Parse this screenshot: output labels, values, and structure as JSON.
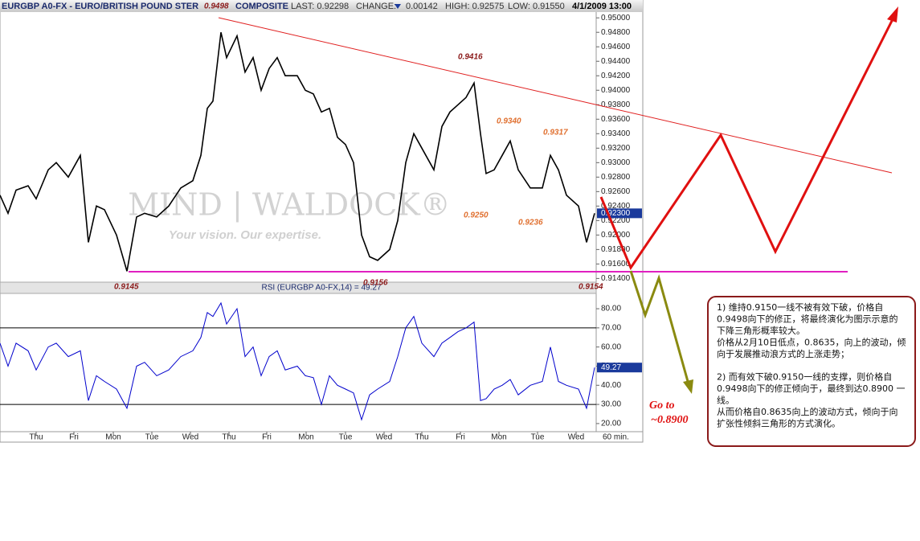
{
  "header": {
    "symbol": "EURGBP A0-FX - EURO/BRITISH POUND STER",
    "source": "COMPOSITE",
    "last": "LAST: 0.92298",
    "change_label": "CHANGE:",
    "change": "0.00142",
    "high": "HIGH: 0.92575",
    "low": "LOW: 0.91550",
    "datetime": "4/1/2009 13:00"
  },
  "chart_data": [
    {
      "type": "line",
      "watermark": [
        "MIND | WALDOCK®",
        "Your vision. Our expertise."
      ],
      "x": [
        0,
        5,
        10,
        17.5,
        22.5,
        30,
        35,
        42.5,
        50,
        55,
        60,
        65,
        72.5,
        79,
        85,
        90,
        97.5,
        105,
        112.5,
        120,
        125,
        129,
        132.5,
        137.5,
        141,
        147.5,
        152.5,
        157.5,
        162.5,
        167.5,
        172.5,
        177.5,
        185,
        190,
        195,
        200,
        205,
        210,
        215,
        220,
        225,
        230,
        235,
        242.5,
        247.5,
        252.5,
        257.5,
        262.5,
        270,
        275,
        280,
        285,
        290,
        295,
        299,
        302.5,
        307.5,
        312.5,
        317.5,
        322.5,
        330,
        337.5,
        342.5,
        347.5,
        352.5,
        360,
        365,
        370
      ],
      "series": [
        {
          "color": "#000000",
          "values": [
            0.9255,
            0.923,
            0.9262,
            0.9268,
            0.925,
            0.929,
            0.93,
            0.928,
            0.931,
            0.919,
            0.924,
            0.9235,
            0.92,
            0.915,
            0.9225,
            0.923,
            0.9225,
            0.924,
            0.9265,
            0.9275,
            0.931,
            0.9375,
            0.9385,
            0.948,
            0.9445,
            0.9475,
            0.9425,
            0.9445,
            0.94,
            0.943,
            0.9445,
            0.942,
            0.942,
            0.94,
            0.9395,
            0.937,
            0.9375,
            0.9335,
            0.9325,
            0.93,
            0.92,
            0.917,
            0.9165,
            0.918,
            0.922,
            0.93,
            0.934,
            0.932,
            0.929,
            0.935,
            0.937,
            0.938,
            0.939,
            0.941,
            0.934,
            0.9285,
            0.929,
            0.931,
            0.933,
            0.929,
            0.9265,
            0.9265,
            0.931,
            0.929,
            0.9255,
            0.924,
            0.919,
            0.923
          ]
        }
      ],
      "xlim": [
        0,
        371
      ],
      "ylim": [
        0.9136,
        0.9508
      ],
      "yticks": [
        {
          "value": 0.914,
          "label": "0.91400"
        },
        {
          "value": 0.916,
          "label": "0.91600"
        },
        {
          "value": 0.918,
          "label": "0.91800"
        },
        {
          "value": 0.92,
          "label": "0.92000"
        },
        {
          "value": 0.922,
          "label": "0.92200"
        },
        {
          "value": 0.924,
          "label": "0.92400"
        },
        {
          "value": 0.926,
          "label": "0.92600"
        },
        {
          "value": 0.928,
          "label": "0.92800"
        },
        {
          "value": 0.93,
          "label": "0.93000"
        },
        {
          "value": 0.932,
          "label": "0.93200"
        },
        {
          "value": 0.934,
          "label": "0.93400"
        },
        {
          "value": 0.936,
          "label": "0.93600"
        },
        {
          "value": 0.938,
          "label": "0.93800"
        },
        {
          "value": 0.94,
          "label": "0.94000"
        },
        {
          "value": 0.942,
          "label": "0.94200"
        },
        {
          "value": 0.944,
          "label": "0.94400"
        },
        {
          "value": 0.946,
          "label": "0.94600"
        },
        {
          "value": 0.948,
          "label": "0.94800"
        },
        {
          "value": 0.95,
          "label": "0.95000"
        }
      ],
      "current": {
        "value": 0.923,
        "label": "0.92300"
      },
      "annotations": [
        "0.9498",
        "0.9416",
        "0.9340",
        "0.9317",
        "0.9250",
        "0.9236",
        "0.9145",
        "0.9156",
        "0.9154"
      ]
    },
    {
      "type": "line",
      "title": "RSI (EURGBP A0-FX,14) = 49.27",
      "x": [
        0,
        5,
        10,
        17.5,
        22.5,
        30,
        35,
        42.5,
        50,
        55,
        60,
        65,
        72.5,
        79,
        85,
        90,
        97.5,
        105,
        112.5,
        120,
        125,
        129,
        132.5,
        137.5,
        141,
        147.5,
        152.5,
        157.5,
        162.5,
        167.5,
        172.5,
        177.5,
        185,
        190,
        195,
        200,
        205,
        210,
        215,
        220,
        225,
        230,
        235,
        242.5,
        247.5,
        252.5,
        257.5,
        262.5,
        270,
        275,
        280,
        285,
        290,
        295,
        299,
        302.5,
        307.5,
        312.5,
        317.5,
        322.5,
        330,
        337.5,
        342.5,
        347.5,
        352.5,
        360,
        365,
        370
      ],
      "series": [
        {
          "color": "#0000cc",
          "values": [
            62,
            50,
            62,
            58,
            48,
            60,
            62,
            55,
            58,
            32,
            45,
            42,
            38,
            28,
            50,
            52,
            45,
            48,
            55,
            58,
            65,
            78,
            76,
            83,
            72,
            80,
            55,
            60,
            45,
            55,
            58,
            48,
            50,
            45,
            44,
            30,
            45,
            40,
            38,
            36,
            22,
            35,
            38,
            42,
            55,
            70,
            76,
            62,
            55,
            62,
            65,
            68,
            70,
            73,
            32,
            33,
            38,
            40,
            43,
            35,
            40,
            42,
            60,
            42,
            40,
            38,
            28,
            49.27
          ]
        }
      ],
      "xlim": [
        0,
        371
      ],
      "ylim": [
        16.6,
        88
      ],
      "yticks": [
        {
          "value": 20,
          "label": "20.00"
        },
        {
          "value": 30,
          "label": "30.00"
        },
        {
          "value": 40,
          "label": "40.00"
        },
        {
          "value": 50,
          "label": "50.00"
        },
        {
          "value": 60,
          "label": "60.00"
        },
        {
          "value": 70,
          "label": "70.00"
        },
        {
          "value": 80,
          "label": "80.00"
        }
      ],
      "ref_lines": [
        30,
        70
      ],
      "current": 49.27,
      "xticks": [
        {
          "value": 22.5,
          "label": "Thu"
        },
        {
          "value": 46,
          "label": "Fri"
        },
        {
          "value": 70.5,
          "label": "Mon"
        },
        {
          "value": 94.5,
          "label": "Tue"
        },
        {
          "value": 118.5,
          "label": "Wed"
        },
        {
          "value": 142.5,
          "label": "Thu"
        },
        {
          "value": 166,
          "label": "Fri"
        },
        {
          "value": 190.5,
          "label": "Mon"
        },
        {
          "value": 215,
          "label": "Tue"
        },
        {
          "value": 239,
          "label": "Wed"
        },
        {
          "value": 262.5,
          "label": "Thu"
        },
        {
          "value": 286.5,
          "label": "Fri"
        },
        {
          "value": 310.5,
          "label": "Mon"
        },
        {
          "value": 334.5,
          "label": "Tue"
        },
        {
          "value": 358.5,
          "label": "Wed"
        }
      ],
      "interval": "60 min."
    }
  ],
  "target": [
    "Go to",
    "~0.8900"
  ],
  "commentary": [
    "1) 维持0.9150一线不被有效下破，价格自",
    "0.9498向下的修正，将最终演化为图示示意的",
    "下降三角形概率较大。",
    " 价格从2月10日低点，0.8635，向上的波动，倾",
    "向于发展推动浪方式的上涨走势；",
    "2) 而有效下破0.9150一线的支撑，则价格自",
    "0.9498向下的修正倾向于，最终到达0.8900 一",
    "线。",
    "从而价格自0.8635向上的波动方式，倾向于向",
    "扩张性倾斜三角形的方式演化。"
  ]
}
